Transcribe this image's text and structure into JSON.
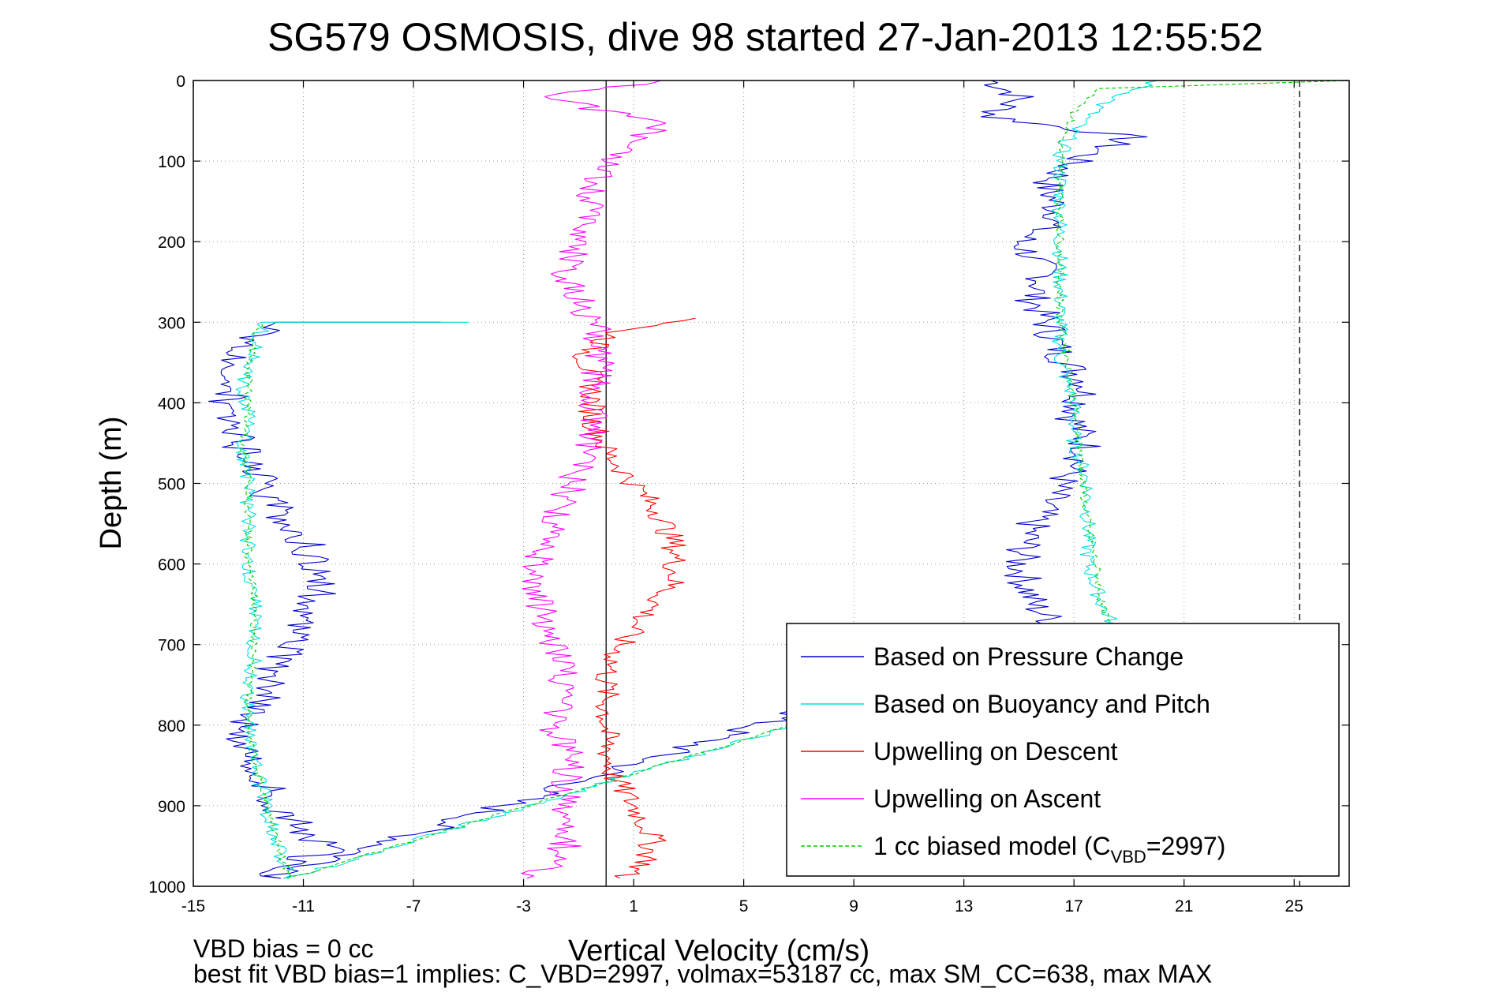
{
  "chart_data": {
    "type": "line",
    "title": "SG579 OSMOSIS, dive 98 started 27-Jan-2013 12:55:52",
    "xlabel": "Vertical Velocity (cm/s)",
    "ylabel": "Depth (m)",
    "xlim": [
      -15,
      27
    ],
    "ylim": [
      1000,
      0
    ],
    "y_reversed": true,
    "grid": true,
    "legend_position": "lower-right",
    "xticks": [
      -15,
      -11,
      -7,
      -3,
      1,
      5,
      9,
      13,
      17,
      21,
      25
    ],
    "yticks": [
      0,
      100,
      200,
      300,
      400,
      500,
      600,
      700,
      800,
      900,
      1000
    ],
    "reference_lines": [
      {
        "axis": "x",
        "value": 0,
        "style": "solid",
        "color": "#000000"
      },
      {
        "axis": "x",
        "value": 25.2,
        "style": "dashed",
        "color": "#000000"
      }
    ],
    "legend": [
      {
        "key": "pressure",
        "label": "Based on Pressure Change",
        "color": "#0000cc",
        "dash": false
      },
      {
        "key": "buoyancy",
        "label": "Based on Buoyancy and Pitch",
        "color": "#00dede",
        "dash": false
      },
      {
        "key": "descent",
        "label": "Upwelling on Descent",
        "color": "#ff0000",
        "dash": false
      },
      {
        "key": "ascent",
        "label": "Upwelling on Ascent",
        "color": "#ff00ff",
        "dash": false
      },
      {
        "key": "model",
        "label_prefix": "1 cc biased model (C",
        "label_sub": "VBD",
        "label_suffix": "=2997)",
        "color": "#00cc00",
        "dash": true
      }
    ],
    "series": [
      {
        "key": "pressure",
        "color": "#0000cc",
        "dash": false,
        "amp": 0.7,
        "points": [
          [
            14,
            0
          ],
          [
            15,
            20
          ],
          [
            14,
            45
          ],
          [
            19,
            70
          ],
          [
            17,
            100
          ],
          [
            16,
            130
          ],
          [
            16.5,
            170
          ],
          [
            15,
            200
          ],
          [
            16,
            240
          ],
          [
            15.5,
            270
          ],
          [
            16,
            300
          ],
          [
            16.5,
            340
          ],
          [
            17.5,
            380
          ],
          [
            17,
            420
          ],
          [
            17.5,
            460
          ],
          [
            16.5,
            500
          ],
          [
            15.5,
            550
          ],
          [
            15,
            600
          ],
          [
            15.5,
            650
          ],
          [
            16.5,
            680
          ],
          [
            -12,
            990
          ],
          [
            -12,
            975
          ],
          [
            -10,
            955
          ],
          [
            -11,
            930
          ],
          [
            -12,
            900
          ],
          [
            -12.5,
            860
          ],
          [
            -13.5,
            820
          ],
          [
            -13,
            790
          ],
          [
            -12,
            760
          ],
          [
            -12,
            730
          ],
          [
            -11.5,
            700
          ],
          [
            -11,
            670
          ],
          [
            -10.5,
            640
          ],
          [
            -10.5,
            600
          ],
          [
            -11,
            570
          ],
          [
            -12,
            530
          ],
          [
            -12.5,
            500
          ],
          [
            -13,
            470
          ],
          [
            -13.5,
            440
          ],
          [
            -14,
            410
          ],
          [
            -13.5,
            380
          ],
          [
            -13.5,
            350
          ],
          [
            -12.5,
            310
          ],
          [
            -12,
            300
          ],
          [
            -6,
            300
          ]
        ]
      },
      {
        "key": "buoyancy",
        "color": "#00dede",
        "dash": false,
        "amp": 0.3,
        "points": [
          [
            20,
            0
          ],
          [
            18,
            30
          ],
          [
            17,
            60
          ],
          [
            16.5,
            90
          ],
          [
            16.5,
            130
          ],
          [
            16.5,
            170
          ],
          [
            16.5,
            200
          ],
          [
            16.5,
            250
          ],
          [
            16.5,
            300
          ],
          [
            16.5,
            350
          ],
          [
            17,
            400
          ],
          [
            17,
            450
          ],
          [
            17.5,
            500
          ],
          [
            17.5,
            550
          ],
          [
            17.5,
            600
          ],
          [
            18,
            650
          ],
          [
            18.5,
            680
          ],
          [
            -11.5,
            990
          ],
          [
            -11.8,
            960
          ],
          [
            -12.2,
            920
          ],
          [
            -12.5,
            880
          ],
          [
            -12.8,
            840
          ],
          [
            -13,
            800
          ],
          [
            -13,
            760
          ],
          [
            -12.8,
            720
          ],
          [
            -12.8,
            680
          ],
          [
            -12.8,
            640
          ],
          [
            -13,
            600
          ],
          [
            -13,
            550
          ],
          [
            -13,
            500
          ],
          [
            -13.2,
            450
          ],
          [
            -13,
            420
          ],
          [
            -13.2,
            380
          ],
          [
            -12.8,
            340
          ],
          [
            -12.5,
            305
          ],
          [
            -12.5,
            300
          ],
          [
            -5,
            300
          ]
        ]
      },
      {
        "key": "descent",
        "color": "#ff0000",
        "dash": false,
        "amp": 0.5,
        "points": [
          [
            3.5,
            295
          ],
          [
            0.5,
            310
          ],
          [
            -0.8,
            340
          ],
          [
            -0.5,
            380
          ],
          [
            -0.5,
            420
          ],
          [
            0,
            460
          ],
          [
            1,
            500
          ],
          [
            2,
            540
          ],
          [
            2.5,
            580
          ],
          [
            2.5,
            620
          ],
          [
            1.5,
            660
          ],
          [
            0.5,
            700
          ],
          [
            0,
            740
          ],
          [
            0,
            780
          ],
          [
            0,
            820
          ],
          [
            0.2,
            860
          ],
          [
            1,
            900
          ],
          [
            1.7,
            940
          ],
          [
            1.5,
            970
          ],
          [
            0.5,
            990
          ]
        ]
      },
      {
        "key": "ascent",
        "color": "#ff00ff",
        "dash": false,
        "amp": 0.6,
        "points": [
          [
            -3,
            990
          ],
          [
            -2,
            975
          ],
          [
            -1.5,
            950
          ],
          [
            -1.3,
            920
          ],
          [
            -1.5,
            880
          ],
          [
            -1.3,
            840
          ],
          [
            -2,
            800
          ],
          [
            -1.5,
            760
          ],
          [
            -1.5,
            720
          ],
          [
            -2.2,
            680
          ],
          [
            -2.5,
            640
          ],
          [
            -2.5,
            600
          ],
          [
            -2,
            560
          ],
          [
            -1.5,
            520
          ],
          [
            -1,
            480
          ],
          [
            -0.5,
            440
          ],
          [
            -0.5,
            400
          ],
          [
            -0.3,
            360
          ],
          [
            -0.3,
            320
          ],
          [
            -0.5,
            300
          ],
          [
            -1,
            270
          ],
          [
            -1.5,
            240
          ],
          [
            -1,
            200
          ],
          [
            -0.8,
            170
          ],
          [
            -0.5,
            140
          ],
          [
            0,
            110
          ],
          [
            1,
            80
          ],
          [
            2,
            50
          ],
          [
            -0.5,
            35
          ],
          [
            -2,
            20
          ],
          [
            1,
            5
          ],
          [
            2,
            0
          ]
        ]
      },
      {
        "key": "model",
        "color": "#00cc00",
        "dash": true,
        "amp": 0.15,
        "points": [
          [
            27,
            0
          ],
          [
            18,
            10
          ],
          [
            17,
            40
          ],
          [
            16.5,
            80
          ],
          [
            16.5,
            130
          ],
          [
            16.5,
            200
          ],
          [
            16.5,
            260
          ],
          [
            16.5,
            300
          ],
          [
            16.8,
            350
          ],
          [
            17,
            400
          ],
          [
            17.2,
            450
          ],
          [
            17.3,
            500
          ],
          [
            17.5,
            550
          ],
          [
            17.8,
            600
          ],
          [
            18,
            650
          ],
          [
            18.3,
            680
          ],
          [
            -11.5,
            990
          ],
          [
            -11.8,
            960
          ],
          [
            -12.2,
            920
          ],
          [
            -12.5,
            880
          ],
          [
            -12.8,
            840
          ],
          [
            -13,
            800
          ],
          [
            -13,
            760
          ],
          [
            -12.8,
            720
          ],
          [
            -12.8,
            680
          ],
          [
            -12.8,
            640
          ],
          [
            -13,
            600
          ],
          [
            -13,
            550
          ],
          [
            -13,
            500
          ],
          [
            -13.2,
            450
          ],
          [
            -13,
            400
          ],
          [
            -13,
            350
          ],
          [
            -12.6,
            305
          ],
          [
            -12.5,
            300
          ]
        ]
      }
    ],
    "annotations": [
      "VBD bias = 0 cc",
      "best fit VBD bias=1 implies: C_VBD=2997, volmax=53187 cc, max SM_CC=638, max MAX"
    ]
  }
}
